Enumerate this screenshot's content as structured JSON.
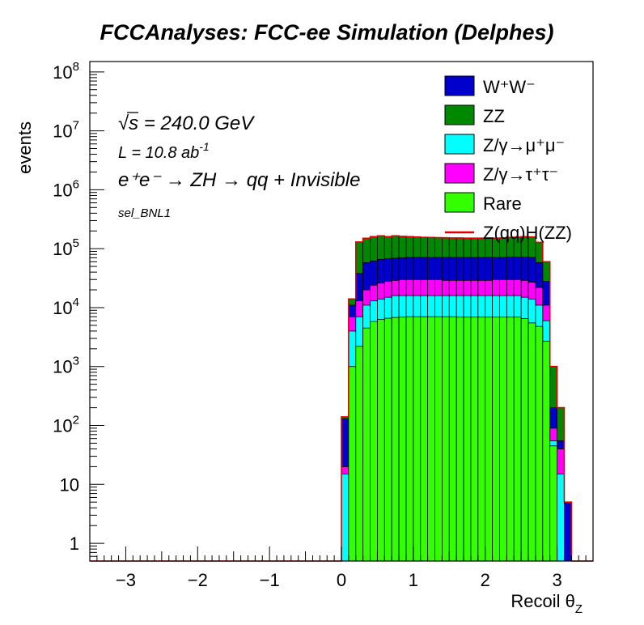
{
  "chart_data": {
    "type": "stacked-histogram",
    "title": "FCCAnalyses: FCC-ee Simulation (Delphes)",
    "xlabel": "Recoil θ",
    "xlabel_sub": "Z",
    "ylabel": "events",
    "xlim": [
      -3.5,
      3.5
    ],
    "ylim": [
      0.5,
      150000000
    ],
    "yscale": "log",
    "bin_width": 0.1,
    "xticks": [
      "−3",
      "−2",
      "−1",
      "0",
      "1",
      "2",
      "3"
    ],
    "yticks": [
      {
        "base": "1",
        "exp": "",
        "value": 1
      },
      {
        "base": "10",
        "exp": "",
        "value": 10
      },
      {
        "base": "10",
        "exp": "2",
        "value": 100
      },
      {
        "base": "10",
        "exp": "3",
        "value": 1000
      },
      {
        "base": "10",
        "exp": "4",
        "value": 10000
      },
      {
        "base": "10",
        "exp": "5",
        "value": 100000
      },
      {
        "base": "10",
        "exp": "6",
        "value": 1000000
      },
      {
        "base": "10",
        "exp": "7",
        "value": 10000000
      },
      {
        "base": "10",
        "exp": "8",
        "value": 100000000
      }
    ],
    "annotations": {
      "sqrt_s_symbol": "√",
      "sqrt_s_text": "s = 240.0 GeV",
      "lumi_text": "L = 10.8 ab",
      "lumi_sup": "-1",
      "process_text": "e⁺e⁻ → ZH → qq + Invisible",
      "selection": "sel_BNL1"
    },
    "legend_position": "top-right",
    "legend": [
      {
        "label": "W⁺W⁻",
        "color": "#0000cc",
        "kind": "box",
        "key": "ww"
      },
      {
        "label": "ZZ",
        "color": "#008800",
        "kind": "box",
        "key": "zz"
      },
      {
        "label": "Z/γ→μ⁺μ⁻",
        "color": "#00ffff",
        "kind": "box",
        "key": "mumu"
      },
      {
        "label": "Z/γ→τ⁺τ⁻",
        "color": "#ff00ff",
        "kind": "box",
        "key": "tautau"
      },
      {
        "label": "Rare",
        "color": "#33ff00",
        "kind": "box",
        "key": "rare"
      },
      {
        "label": "Z(qq)H(ZZ)",
        "color": "#dd0000",
        "kind": "line",
        "key": "signal"
      }
    ],
    "series_stacked_cumulative": {
      "bin_low_edges": [
        0.0,
        0.1,
        0.2,
        0.3,
        0.4,
        0.5,
        0.6,
        0.7,
        0.8,
        0.9,
        1.0,
        1.1,
        1.2,
        1.3,
        1.4,
        1.5,
        1.6,
        1.7,
        1.8,
        1.9,
        2.0,
        2.1,
        2.2,
        2.3,
        2.4,
        2.5,
        2.6,
        2.7,
        2.8,
        2.9,
        3.0,
        3.1,
        3.2
      ],
      "total": [
        140,
        14000,
        130000,
        150000,
        160000,
        165000,
        160000,
        165000,
        162000,
        160000,
        158000,
        156000,
        155000,
        154000,
        153000,
        152000,
        152000,
        151000,
        151000,
        151000,
        151000,
        151000,
        152000,
        155000,
        157000,
        160000,
        158000,
        128000,
        60000,
        1000,
        200,
        5,
        0
      ],
      "ww_and_below": [
        130,
        11000,
        38000,
        58000,
        62000,
        66000,
        68000,
        69000,
        70000,
        71000,
        71000,
        71000,
        71000,
        71000,
        71000,
        71000,
        71000,
        71000,
        71000,
        71000,
        71000,
        71000,
        71000,
        72000,
        72000,
        72000,
        71000,
        58000,
        28000,
        200,
        55,
        5,
        0
      ],
      "mumu_and_below": [
        20,
        7000,
        13000,
        20000,
        24000,
        26000,
        28000,
        29000,
        30000,
        30000,
        30000,
        30000,
        30000,
        30000,
        29000,
        29000,
        29000,
        29000,
        29000,
        29000,
        29000,
        30000,
        30000,
        30000,
        30000,
        29000,
        27000,
        22000,
        11000,
        90,
        40,
        0,
        0
      ],
      "tautau_and_below": [
        15,
        4000,
        7000,
        11000,
        13000,
        14000,
        15000,
        16000,
        16000,
        16000,
        16000,
        16000,
        16000,
        16000,
        16000,
        16000,
        16000,
        16000,
        16000,
        16000,
        16000,
        16000,
        16000,
        16000,
        16000,
        15000,
        14000,
        11000,
        6000,
        55,
        15,
        0,
        0
      ],
      "rare": [
        0,
        1000,
        2200,
        4500,
        5800,
        6300,
        6600,
        6800,
        6900,
        7000,
        7000,
        7000,
        7000,
        7000,
        7000,
        7000,
        6900,
        6900,
        6900,
        6900,
        6900,
        6900,
        6900,
        6900,
        6900,
        6500,
        5500,
        4800,
        2700,
        45,
        0,
        0,
        0
      ]
    }
  }
}
